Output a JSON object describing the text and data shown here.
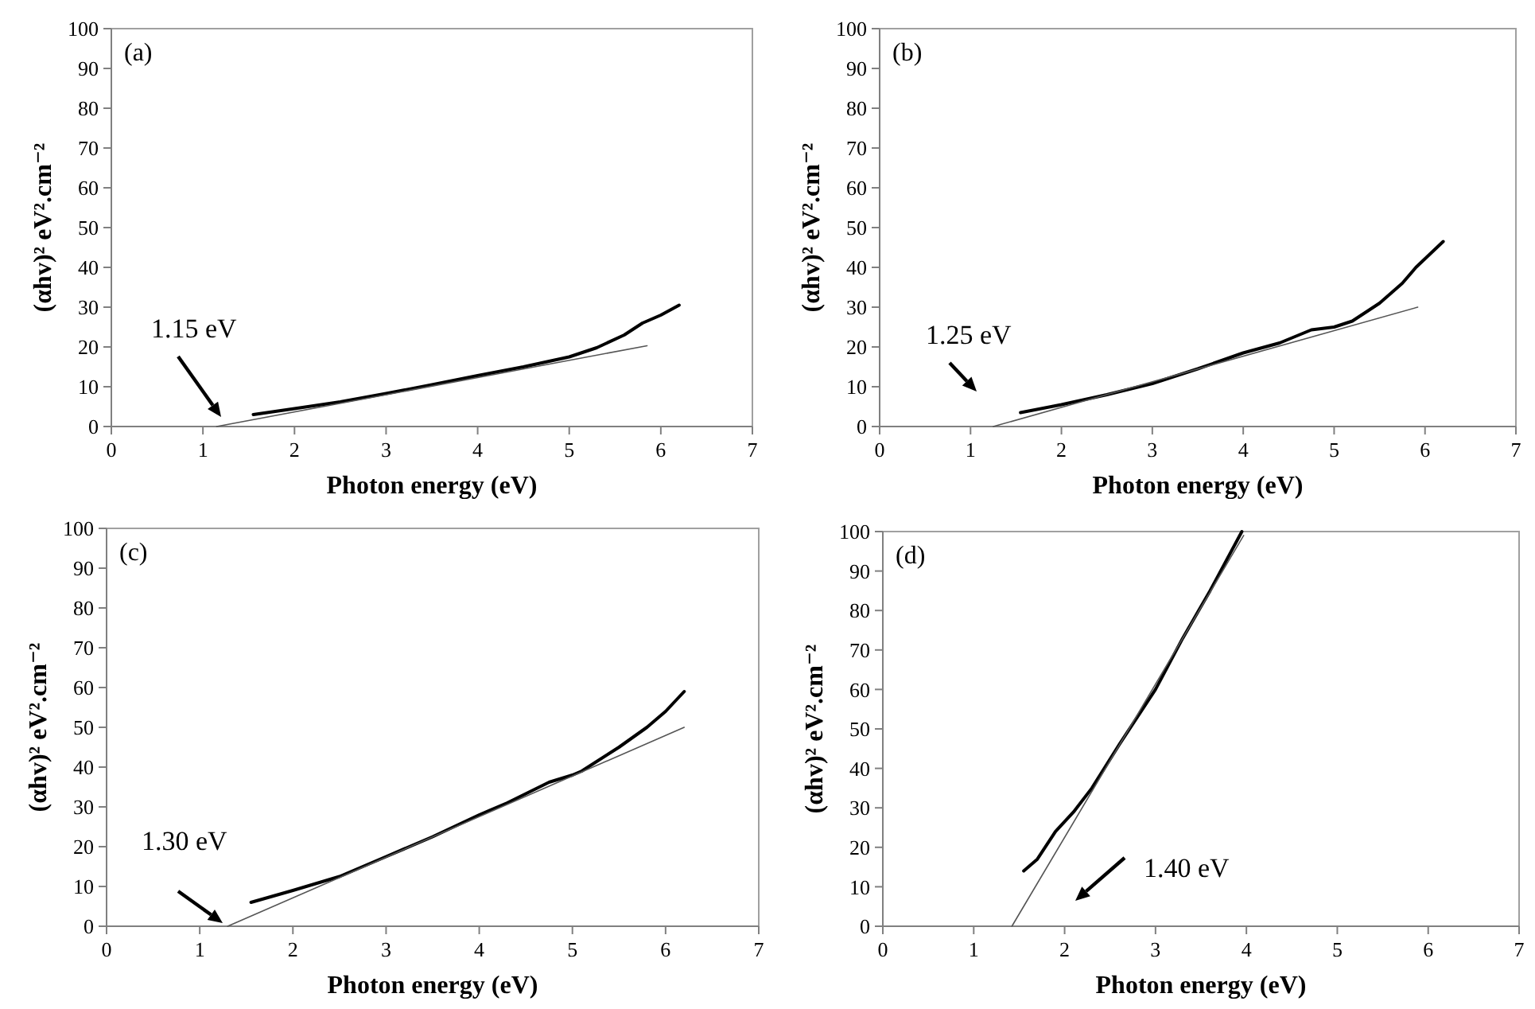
{
  "chart_data": [
    {
      "type": "line",
      "title": "(a)",
      "xlabel": "Photon energy (eV)",
      "ylabel": "(αhv)² eV².cm⁻²",
      "xlim": [
        0,
        7
      ],
      "ylim": [
        0,
        100
      ],
      "xticks": [
        0,
        1,
        2,
        3,
        4,
        5,
        6,
        7
      ],
      "yticks": [
        0,
        10,
        20,
        30,
        40,
        50,
        60,
        70,
        80,
        90,
        100
      ],
      "annotations": [
        "1.15 eV"
      ],
      "series": [
        {
          "color": "#000000",
          "x": [
            1.55,
            2,
            2.5,
            3,
            3.5,
            4,
            4.5,
            5,
            5.3,
            5.6,
            5.8,
            6,
            6.2
          ],
          "values": [
            3,
            4.5,
            6.2,
            8.3,
            10.5,
            12.8,
            15,
            17.5,
            19.8,
            23,
            26,
            28,
            30.5
          ]
        },
        {
          "color": "#555555",
          "x": [
            1.15,
            5.85
          ],
          "values": [
            0,
            20.3
          ]
        }
      ]
    },
    {
      "type": "line",
      "title": "(b)",
      "xlabel": "Photon energy (eV)",
      "ylabel": "(αhv)² eV².cm⁻²",
      "xlim": [
        0,
        7
      ],
      "ylim": [
        0,
        100
      ],
      "xticks": [
        0,
        1,
        2,
        3,
        4,
        5,
        6,
        7
      ],
      "yticks": [
        0,
        10,
        20,
        30,
        40,
        50,
        60,
        70,
        80,
        90,
        100
      ],
      "annotations": [
        "1.25 eV"
      ],
      "series": [
        {
          "color": "#000000",
          "x": [
            1.55,
            2,
            2.5,
            3,
            3.5,
            4,
            4.4,
            4.75,
            5,
            5.2,
            5.5,
            5.75,
            5.9,
            6.2
          ],
          "values": [
            3.5,
            5.5,
            8,
            10.8,
            14.5,
            18.5,
            21,
            24.3,
            25,
            26.5,
            31,
            36,
            40,
            46.5
          ]
        },
        {
          "color": "#555555",
          "x": [
            1.25,
            5.92
          ],
          "values": [
            0,
            30
          ]
        }
      ]
    },
    {
      "type": "line",
      "title": "(c)",
      "xlabel": "Photon energy (eV)",
      "ylabel": "(αhv)² eV².cm⁻²",
      "xlim": [
        0,
        7
      ],
      "ylim": [
        0,
        100
      ],
      "xticks": [
        0,
        1,
        2,
        3,
        4,
        5,
        6,
        7
      ],
      "yticks": [
        0,
        10,
        20,
        30,
        40,
        50,
        60,
        70,
        80,
        90,
        100
      ],
      "annotations": [
        "1.30 eV"
      ],
      "series": [
        {
          "color": "#000000",
          "x": [
            1.55,
            2,
            2.5,
            3,
            3.5,
            4,
            4.3,
            4.75,
            5,
            5.1,
            5.5,
            5.8,
            6,
            6.2
          ],
          "values": [
            6,
            9,
            12.5,
            17.5,
            22.5,
            28,
            31,
            36.2,
            38,
            39,
            45,
            50,
            54,
            59
          ]
        },
        {
          "color": "#555555",
          "x": [
            1.3,
            6.2
          ],
          "values": [
            0,
            50
          ]
        }
      ]
    },
    {
      "type": "line",
      "title": "(d)",
      "xlabel": "Photon energy (eV)",
      "ylabel": "(αhv)² eV².cm⁻²",
      "xlim": [
        0,
        7
      ],
      "ylim": [
        0,
        100
      ],
      "xticks": [
        0,
        1,
        2,
        3,
        4,
        5,
        6,
        7
      ],
      "yticks": [
        0,
        10,
        20,
        30,
        40,
        50,
        60,
        70,
        80,
        90,
        100
      ],
      "annotations": [
        "1.40 eV"
      ],
      "series": [
        {
          "color": "#000000",
          "x": [
            1.55,
            1.7,
            1.9,
            2.1,
            2.3,
            2.6,
            3,
            3.3,
            3.6,
            3.95
          ],
          "values": [
            14,
            17,
            24,
            29,
            35,
            46,
            60,
            73,
            85,
            100
          ]
        },
        {
          "color": "#555555",
          "x": [
            1.42,
            3.97
          ],
          "values": [
            0,
            99
          ]
        }
      ]
    }
  ]
}
